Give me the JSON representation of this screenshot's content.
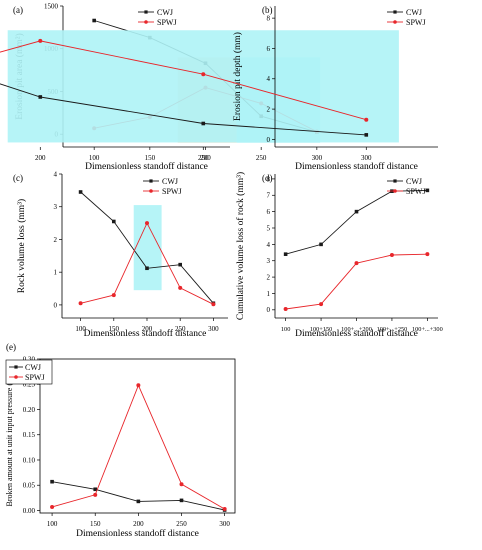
{
  "colors": {
    "cwj": "#1a1a1a",
    "spwj": "#e8262b",
    "tan_highlight": "#f3dfc2",
    "cyan_highlight": "#aef3f6"
  },
  "legend": {
    "cwj": "CWJ",
    "spwj": "SPWJ"
  },
  "chart_data": [
    {
      "panel": "(a)",
      "type": "line",
      "x": [
        100,
        150,
        200,
        250,
        300
      ],
      "xticks": [
        "100",
        "150",
        "200",
        "250",
        "300"
      ],
      "xlabel": "Dimensionless standoff distance",
      "ylabel": "Erosion pit area (mm²)",
      "yticks": [
        "0",
        "500",
        "1000",
        "1500"
      ],
      "ylim": [
        -150,
        1500
      ],
      "highlights": [
        {
          "color": "tan",
          "x": [
            175,
            228
          ],
          "y": [
            -100,
            900
          ]
        },
        {
          "color": "cyan",
          "x": [
            228,
            303
          ],
          "y": [
            -100,
            900
          ]
        }
      ],
      "series": [
        {
          "name": "CWJ",
          "values": [
            1330,
            1130,
            830,
            210,
            25
          ]
        },
        {
          "name": "SPWJ",
          "values": [
            70,
            200,
            545,
            360,
            30
          ]
        }
      ]
    },
    {
      "panel": "(b)",
      "type": "line",
      "x": [
        100,
        150,
        200,
        250,
        300
      ],
      "xticks": [
        "100",
        "150",
        "200",
        "250",
        "300"
      ],
      "xlabel": "Dimensionless standoff distance",
      "ylabel": "Erosion pit depth (mm)",
      "yticks": [
        "0",
        "2",
        "4",
        "6",
        "8"
      ],
      "ylim": [
        -0.5,
        8.8
      ],
      "highlights": [
        {
          "color": "cyan",
          "x": [
            190,
            310
          ],
          "y": [
            -0.2,
            7.2
          ]
        }
      ],
      "series": [
        {
          "name": "CWJ",
          "values": [
            8.2,
            6.3,
            2.8,
            1.05,
            0.3
          ]
        },
        {
          "name": "SPWJ",
          "values": [
            1.8,
            3.5,
            6.5,
            4.3,
            1.3
          ]
        }
      ]
    },
    {
      "panel": "(c)",
      "type": "line",
      "x": [
        100,
        150,
        200,
        250,
        300
      ],
      "xticks": [
        "100",
        "150",
        "200",
        "250",
        "300"
      ],
      "xlabel": "Dimensionless standoff distance",
      "ylabel": "Rock volume loss (mm³)",
      "yticks": [
        "0",
        "1",
        "2",
        "3",
        "4"
      ],
      "ylim": [
        -0.4,
        4
      ],
      "highlights": [
        {
          "color": "cyan",
          "x": [
            180,
            222
          ],
          "y": [
            0.45,
            3.05
          ]
        }
      ],
      "series": [
        {
          "name": "CWJ",
          "values": [
            3.45,
            2.55,
            1.12,
            1.23,
            0.05
          ]
        },
        {
          "name": "SPWJ",
          "values": [
            0.05,
            0.3,
            2.5,
            0.52,
            0.02
          ]
        }
      ]
    },
    {
      "panel": "(d)",
      "type": "line",
      "categories": [
        "100",
        "100+150",
        "100+...+200",
        "100+...+250",
        "100+...+300"
      ],
      "xlabel": "Dimensionless standoff distance",
      "ylabel": "Cumulative volume loss of rock (mm³)",
      "yticks": [
        "0",
        "1",
        "2",
        "3",
        "4",
        "5",
        "6",
        "7",
        "8"
      ],
      "ylim": [
        -0.5,
        8.3
      ],
      "series": [
        {
          "name": "CWJ",
          "values": [
            3.4,
            4.0,
            6.0,
            7.25,
            7.3
          ]
        },
        {
          "name": "SPWJ",
          "values": [
            0.05,
            0.35,
            2.85,
            3.35,
            3.4
          ]
        }
      ]
    },
    {
      "panel": "(e)",
      "type": "line",
      "x": [
        100,
        150,
        200,
        250,
        300
      ],
      "xticks": [
        "100",
        "150",
        "200",
        "250",
        "300"
      ],
      "xlabel": "Dimensionless standoff distance",
      "ylabel": "Broken amount at unit input pressure (mm³)",
      "yticks": [
        "0.00",
        "0.05",
        "0.10",
        "0.15",
        "0.20",
        "0.25",
        "0.30"
      ],
      "ylim": [
        -0.005,
        0.3
      ],
      "series": [
        {
          "name": "CWJ",
          "values": [
            0.057,
            0.042,
            0.018,
            0.02,
            0.001
          ]
        },
        {
          "name": "SPWJ",
          "values": [
            0.007,
            0.031,
            0.248,
            0.052,
            0.003
          ]
        }
      ]
    }
  ]
}
